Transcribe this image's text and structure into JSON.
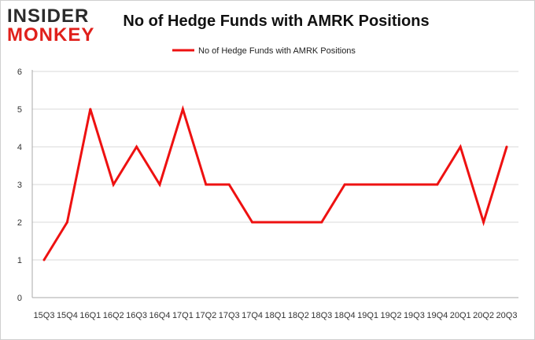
{
  "logo": {
    "line1": "INSIDER",
    "line2": "MONKEY"
  },
  "chart_data": {
    "type": "line",
    "title": "No of Hedge Funds with AMRK Positions",
    "xlabel": "",
    "ylabel": "",
    "categories": [
      "15Q3",
      "15Q4",
      "16Q1",
      "16Q2",
      "16Q3",
      "16Q4",
      "17Q1",
      "17Q2",
      "17Q3",
      "17Q4",
      "18Q1",
      "18Q2",
      "18Q3",
      "18Q4",
      "19Q1",
      "19Q2",
      "19Q3",
      "19Q4",
      "20Q1",
      "20Q2",
      "20Q3"
    ],
    "series": [
      {
        "name": "No of Hedge Funds with AMRK Positions",
        "color": "#ee1111",
        "values": [
          1,
          2,
          5,
          3,
          4,
          3,
          5,
          3,
          3,
          2,
          2,
          2,
          2,
          3,
          3,
          3,
          3,
          3,
          4,
          2,
          4
        ]
      }
    ],
    "ylim": [
      0,
      6
    ],
    "yticks": [
      0,
      1,
      2,
      3,
      4,
      5,
      6
    ],
    "grid": true,
    "legend": "top-center"
  }
}
